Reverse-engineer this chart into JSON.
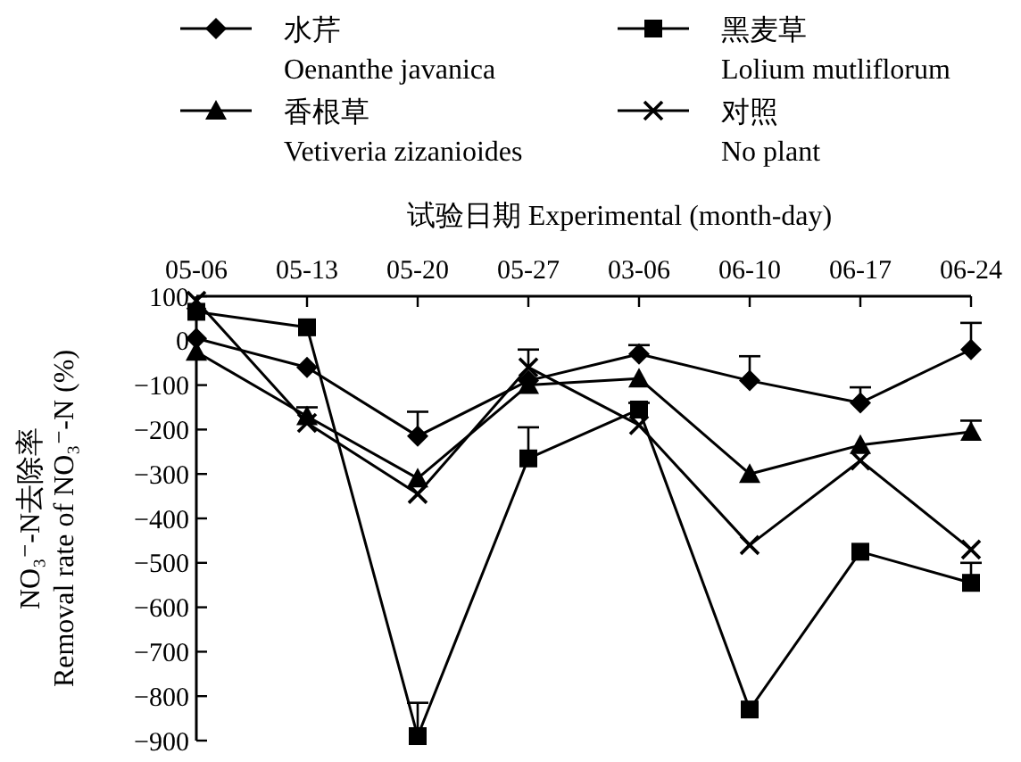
{
  "chart_data": {
    "type": "line",
    "xlabel": "试验日期 Experimental (month-day)",
    "ylabel": "NO₃⁻-N去除率\nRemoval rate of NO₃⁻-N (%)",
    "categories": [
      "05-06",
      "05-13",
      "05-20",
      "05-27",
      "03-06",
      "06-10",
      "06-17",
      "06-24"
    ],
    "ylim": [
      -900,
      100
    ],
    "yticks": [
      100,
      0,
      -100,
      -200,
      -300,
      -400,
      -500,
      -600,
      -700,
      -800,
      -900
    ],
    "grid": false,
    "legend": "top",
    "series": [
      {
        "name": "水芹\nOenanthe javanica",
        "color": "#000000",
        "marker": "diamond",
        "values": [
          5,
          -60,
          -215,
          -90,
          -30,
          -90,
          -140,
          -20
        ],
        "errors": [
          null,
          null,
          [
            -215,
            -160
          ],
          null,
          [
            -30,
            -10
          ],
          [
            -90,
            -35
          ],
          [
            -140,
            -105
          ],
          [
            -20,
            40
          ]
        ]
      },
      {
        "name": "黑麦草\nLolium mutliflorum",
        "color": "#000000",
        "marker": "square",
        "values": [
          65,
          30,
          -890,
          -265,
          -155,
          -830,
          -475,
          -545
        ],
        "errors": [
          null,
          null,
          [
            -890,
            -815
          ],
          [
            -265,
            -195
          ],
          [
            -155,
            -140
          ],
          null,
          null,
          [
            -545,
            -500
          ]
        ]
      },
      {
        "name": "香根草\nVetiveria zizanioides",
        "color": "#000000",
        "marker": "triangle",
        "values": [
          -25,
          -170,
          -310,
          -100,
          -85,
          -300,
          -235,
          -205
        ],
        "errors": [
          null,
          [
            -170,
            -150
          ],
          null,
          null,
          null,
          null,
          null,
          [
            -205,
            -180
          ]
        ]
      },
      {
        "name": "对照\nNo plant",
        "color": "#000000",
        "marker": "cross",
        "values": [
          90,
          -185,
          -345,
          -60,
          -190,
          -460,
          -270,
          -470
        ],
        "errors": [
          null,
          null,
          null,
          [
            -60,
            -20
          ],
          null,
          null,
          null,
          null
        ]
      }
    ]
  }
}
